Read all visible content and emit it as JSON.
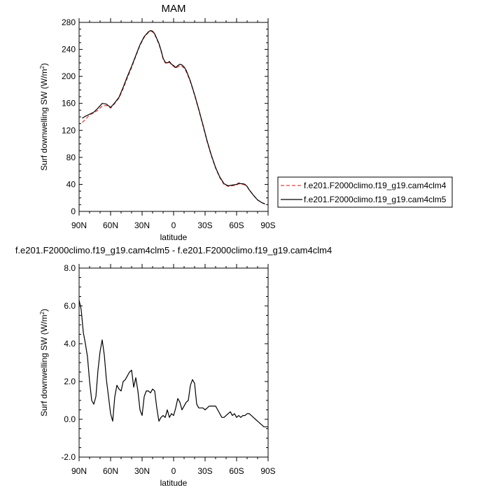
{
  "chart_data": [
    {
      "type": "line",
      "title": "MAM",
      "xlabel": "latitude",
      "ylabel": "Surf downwelling SW (W/m",
      "ylabel_sup": "2",
      "ylabel_end": ")",
      "xlim": [
        90,
        -90
      ],
      "ylim": [
        0,
        280
      ],
      "xticks": [
        90,
        60,
        30,
        0,
        -30,
        -60,
        -90
      ],
      "xtick_labels": [
        "90N",
        "60N",
        "30N",
        "0",
        "30S",
        "60S",
        "90S"
      ],
      "yticks": [
        0,
        40,
        80,
        120,
        160,
        200,
        240,
        280
      ],
      "ytick_labels": [
        "0",
        "40",
        "80",
        "120",
        "160",
        "200",
        "240",
        "280"
      ],
      "legend_position": "right",
      "series": [
        {
          "name": "f.e201.F2000climo.f19_g19.cam4clm4",
          "color": "#e8413c",
          "dash": "dashed",
          "x": [
            87,
            84,
            80,
            76,
            72,
            68,
            64,
            60,
            56,
            52,
            48,
            44,
            40,
            36,
            32,
            28,
            24,
            22,
            20,
            18,
            16,
            14,
            12,
            10,
            8,
            6,
            4,
            2,
            0,
            -2,
            -4,
            -6,
            -8,
            -10,
            -12,
            -14,
            -16,
            -20,
            -24,
            -28,
            -32,
            -36,
            -40,
            -44,
            -48,
            -52,
            -56,
            -60,
            -62,
            -64,
            -66,
            -68,
            -70,
            -72,
            -76,
            -80,
            -84,
            -87
          ],
          "y": [
            132,
            136,
            143,
            146,
            150,
            156,
            157,
            153,
            160,
            168,
            182,
            198,
            213,
            230,
            246,
            258,
            265,
            267,
            266,
            262,
            255,
            248,
            238,
            226,
            220,
            219,
            221,
            217,
            215,
            212,
            214,
            216,
            215,
            212,
            207,
            200,
            192,
            172,
            150,
            127,
            103,
            82,
            64,
            50,
            40,
            37,
            38,
            39,
            41,
            40,
            40,
            39,
            37,
            32,
            24,
            17,
            13,
            11
          ]
        },
        {
          "name": "f.e201.F2000climo.f19_g19.cam4clm5",
          "color": "#000000",
          "dash": "solid",
          "x": [
            87,
            84,
            80,
            76,
            72,
            68,
            64,
            60,
            56,
            52,
            48,
            44,
            40,
            36,
            32,
            28,
            24,
            22,
            20,
            18,
            16,
            14,
            12,
            10,
            8,
            6,
            4,
            2,
            0,
            -2,
            -4,
            -6,
            -8,
            -10,
            -12,
            -14,
            -16,
            -20,
            -24,
            -28,
            -32,
            -36,
            -40,
            -44,
            -48,
            -52,
            -56,
            -60,
            -62,
            -64,
            -66,
            -68,
            -70,
            -72,
            -76,
            -80,
            -84,
            -87
          ],
          "y": [
            138,
            141,
            144,
            147,
            153,
            160,
            159,
            154,
            161,
            169,
            184,
            200,
            215,
            231,
            247,
            259,
            266,
            268,
            267,
            263,
            256,
            249,
            239,
            227,
            221,
            220,
            222,
            218,
            216,
            213,
            216,
            218,
            217,
            214,
            209,
            201,
            193,
            173,
            151,
            128,
            104,
            83,
            65,
            51,
            41,
            38,
            39,
            40,
            42,
            41,
            41,
            40,
            37,
            32,
            24,
            17,
            13,
            11
          ]
        }
      ]
    },
    {
      "type": "line",
      "title": "f.e201.F2000climo.f19_g19.cam4clm5 - f.e201.F2000climo.f19_g19.cam4clm4",
      "xlabel": "latitude",
      "ylabel": "Surf downwelling SW (W/m",
      "ylabel_sup": "2",
      "ylabel_end": ")",
      "xlim": [
        90,
        -90
      ],
      "ylim": [
        -2,
        8
      ],
      "xticks": [
        90,
        60,
        30,
        0,
        -30,
        -60,
        -90
      ],
      "xtick_labels": [
        "90N",
        "60N",
        "30N",
        "0",
        "30S",
        "60S",
        "90S"
      ],
      "yticks": [
        -2,
        0,
        2,
        4,
        6,
        8
      ],
      "ytick_labels": [
        "-2.0",
        "0.0",
        "2.0",
        "4.0",
        "6.0",
        "8.0"
      ],
      "series": [
        {
          "color": "#000000",
          "dash": "solid",
          "x": [
            90,
            88,
            86,
            84,
            82,
            80,
            78,
            76,
            74,
            72,
            70,
            68,
            66,
            64,
            62,
            60,
            58,
            56,
            54,
            52,
            50,
            48,
            46,
            44,
            42,
            40,
            38,
            36,
            34,
            32,
            30,
            28,
            26,
            24,
            22,
            20,
            18,
            16,
            14,
            12,
            10,
            8,
            6,
            4,
            2,
            0,
            -2,
            -4,
            -6,
            -8,
            -10,
            -12,
            -14,
            -16,
            -18,
            -20,
            -22,
            -24,
            -26,
            -28,
            -30,
            -32,
            -34,
            -36,
            -38,
            -40,
            -42,
            -44,
            -46,
            -48,
            -50,
            -52,
            -54,
            -56,
            -58,
            -60,
            -62,
            -64,
            -66,
            -68,
            -70,
            -72,
            -74,
            -76,
            -78,
            -80,
            -82,
            -84,
            -86,
            -88,
            -90
          ],
          "y": [
            6.3,
            5.8,
            4.6,
            4.0,
            3.3,
            2.0,
            1.0,
            0.8,
            1.2,
            2.6,
            3.6,
            4.2,
            3.4,
            2.1,
            1.2,
            0.3,
            -0.1,
            1.2,
            1.8,
            1.6,
            1.5,
            2.0,
            2.1,
            2.3,
            2.5,
            2.6,
            1.7,
            2.2,
            1.5,
            0.5,
            0.2,
            1.2,
            1.5,
            1.5,
            1.4,
            1.6,
            1.5,
            0.6,
            -0.1,
            0.1,
            0.2,
            0.1,
            0.5,
            0.1,
            0.3,
            0.2,
            0.6,
            1.1,
            0.9,
            0.5,
            0.7,
            0.9,
            1.0,
            1.8,
            2.1,
            1.9,
            0.8,
            0.6,
            0.6,
            0.6,
            0.5,
            0.6,
            0.7,
            0.7,
            0.7,
            0.7,
            0.5,
            0.3,
            0.1,
            0.1,
            0.2,
            0.3,
            0.4,
            0.2,
            0.3,
            0.1,
            0.2,
            0.1,
            0.2,
            0.2,
            0.3,
            0.3,
            0.2,
            0.1,
            0.0,
            -0.1,
            -0.2,
            -0.3,
            -0.4,
            -0.4,
            -0.4
          ]
        }
      ]
    }
  ]
}
